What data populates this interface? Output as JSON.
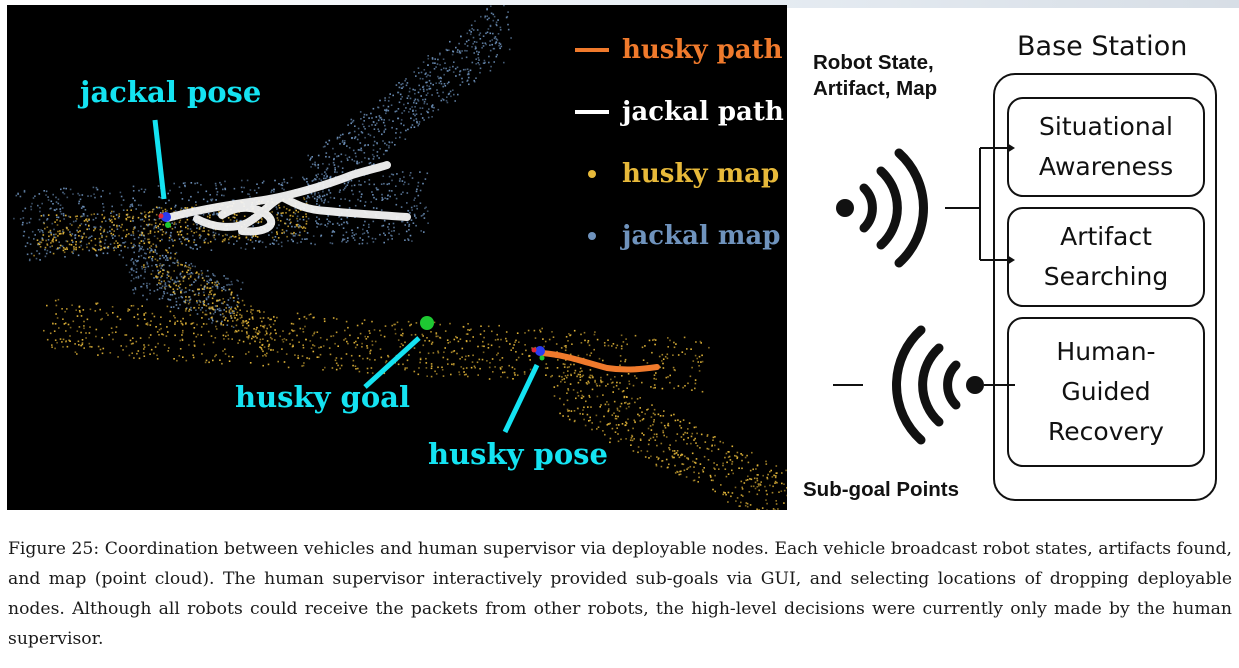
{
  "figure": {
    "map": {
      "callouts": {
        "jackal_pose": "jackal pose",
        "husky_goal": "husky goal",
        "husky_pose": "husky pose"
      },
      "legend": [
        {
          "label": "husky path",
          "marker": "line",
          "color": "#f07a2c"
        },
        {
          "label": "jackal path",
          "marker": "line",
          "color": "#ffffff"
        },
        {
          "label": "husky map",
          "marker": "dot",
          "color": "#e7b93a"
        },
        {
          "label": "jackal map",
          "marker": "dot",
          "color": "#6f93bd"
        }
      ],
      "colors": {
        "callout": "#14e3f2",
        "goal": "#1ec832",
        "pose_marker": "#2a3cf0"
      }
    },
    "diagram": {
      "base_station_title": "Base Station",
      "robot_state_label": "Robot State,\nArtifact, Map",
      "subgoal_label": "Sub-goal Points",
      "modules": [
        {
          "text": "Situational\nAwareness"
        },
        {
          "text": "Artifact\nSearching"
        },
        {
          "text": "Human-\nGuided\nRecovery"
        }
      ],
      "icons": [
        "incoming-signal-icon",
        "outgoing-signal-icon"
      ]
    },
    "caption": "Figure 25: Coordination between vehicles and human supervisor via deployable nodes. Each vehicle broadcast robot states, artifacts found, and map (point cloud). The human supervisor interactively provided sub-goals via GUI, and selecting locations of dropping deployable nodes. Although all robots could receive the packets from other robots, the high-level decisions were currently only made by the human supervisor."
  }
}
